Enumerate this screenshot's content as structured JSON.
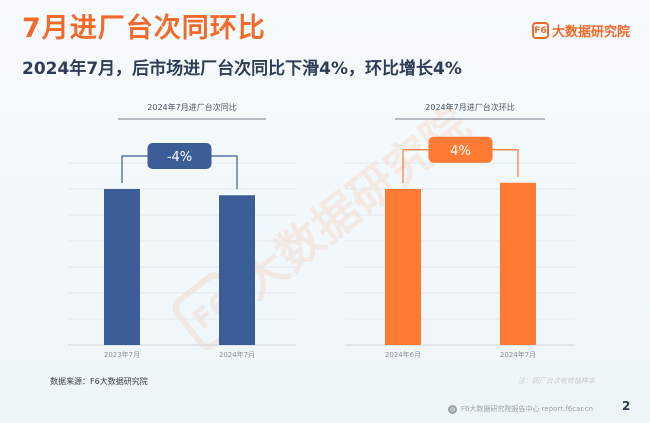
{
  "header": {
    "title": "7月进厂台次同环比",
    "subtitle": "2024年7月，后市场进厂台次同比下滑4%，环比增长4%",
    "brand": "大数据研究院",
    "brand_logo_text": "F6"
  },
  "watermark": {
    "text": "大数据研究院",
    "logo_text": "F6"
  },
  "colors": {
    "accent": "#f26a2b",
    "navy": "#3b5d98",
    "orange": "#ff7a33",
    "dark": "#2e3c56"
  },
  "chart_data": [
    {
      "type": "bar",
      "title": "2024年7月进厂台次同比",
      "categories": [
        "2023年7月",
        "2024年7月"
      ],
      "values": [
        100,
        96
      ],
      "value_note": "relative index (2023年7月 = 100)",
      "change_label": "-4%",
      "color": "#3b5d98",
      "grid": true
    },
    {
      "type": "bar",
      "title": "2024年7月进厂台次环比",
      "categories": [
        "2024年6月",
        "2024年7月"
      ],
      "values": [
        100,
        104
      ],
      "value_note": "relative index (2024年6月 = 100)",
      "change_label": "4%",
      "color": "#ff7a33",
      "grid": true
    }
  ],
  "footer": {
    "source": "数据来源：F6大数据研究院",
    "note": "注：因厂台次有效值样本",
    "website": "F6大数据研究院报告中心 report.f6car.cn",
    "page": "2"
  }
}
